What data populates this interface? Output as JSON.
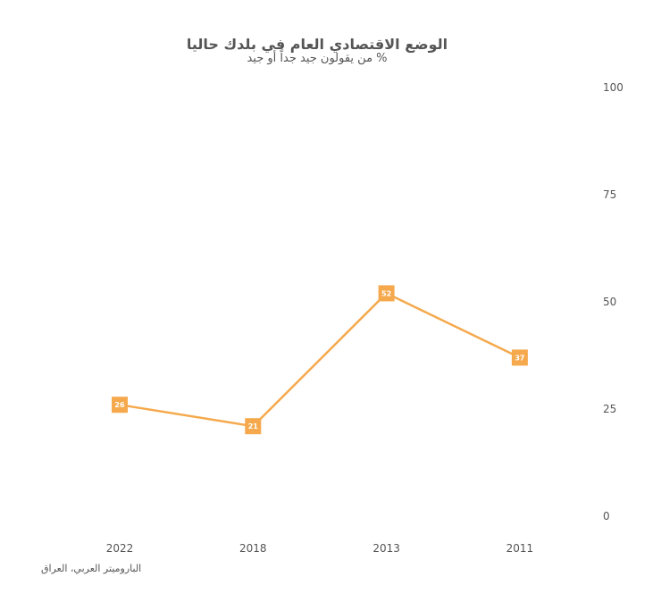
{
  "chart_data": {
    "type": "line",
    "title": "الوضع الاقتصادي العام في بلدك حاليا",
    "subtitle": "% من يقولون جيد جداً أو جيد",
    "source": "الباروميتر العربي، العراق",
    "categories": [
      "2022",
      "2018",
      "2013",
      "2011"
    ],
    "series": [
      {
        "values": [
          26,
          21,
          52,
          37
        ]
      }
    ],
    "ylim": [
      0,
      100
    ],
    "yticks": [
      0,
      25,
      50,
      75,
      100
    ],
    "y_axis_side": "right",
    "grid": false,
    "line_color": "#F5A94C",
    "label_text_color": "#FFFFFF"
  }
}
